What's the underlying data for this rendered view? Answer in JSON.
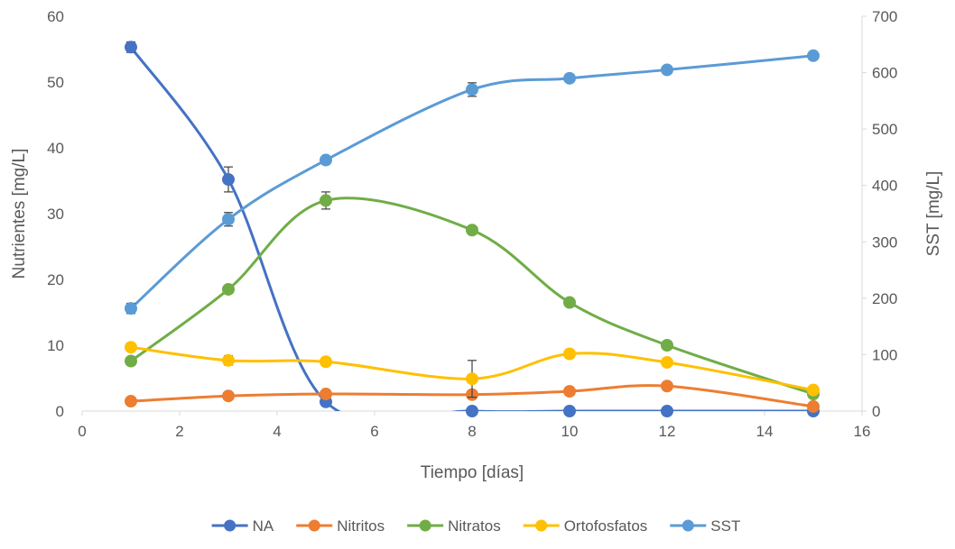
{
  "chart_data": {
    "type": "line",
    "x": [
      1,
      3,
      5,
      8,
      10,
      12,
      15
    ],
    "xlabel": "Tiempo [días]",
    "ylabel_left": "Nutrientes [mg/L]",
    "ylabel_right": "SST [mg/L]",
    "xlim": [
      0,
      16
    ],
    "ylim_left": [
      0,
      60
    ],
    "ylim_right": [
      0,
      700
    ],
    "x_ticks": [
      "0",
      "2",
      "4",
      "6",
      "8",
      "10",
      "12",
      "14",
      "16"
    ],
    "y_ticks_left": [
      "0",
      "10",
      "20",
      "30",
      "40",
      "50",
      "60"
    ],
    "y_ticks_right": [
      "0",
      "100",
      "200",
      "300",
      "400",
      "500",
      "600",
      "700"
    ],
    "grid": false,
    "smoothed": true,
    "legend_position": "bottom",
    "series": [
      {
        "name": "NA",
        "axis": "left",
        "color": "#4472C4",
        "values": [
          55.3,
          35.2,
          1.4,
          0,
          0,
          0,
          0
        ],
        "error": [
          0.8,
          1.9,
          0,
          0,
          0,
          0,
          0
        ]
      },
      {
        "name": "Nitritos",
        "axis": "left",
        "color": "#ED7D31",
        "values": [
          1.5,
          2.3,
          2.6,
          2.5,
          3.0,
          3.8,
          0.7
        ],
        "error": [
          0,
          0,
          0,
          0,
          0,
          0,
          0
        ]
      },
      {
        "name": "Nitratos",
        "axis": "left",
        "color": "#70AD47",
        "values": [
          7.6,
          18.5,
          32.0,
          27.5,
          16.5,
          10.0,
          2.6
        ],
        "error": [
          0,
          0,
          1.3,
          0,
          0,
          0,
          0
        ]
      },
      {
        "name": "Ortofosfatos",
        "axis": "left",
        "color": "#FFC000",
        "values": [
          9.7,
          7.7,
          7.5,
          4.9,
          8.7,
          7.4,
          3.2
        ],
        "error": [
          0,
          0.7,
          0,
          2.8,
          0,
          0,
          0
        ]
      },
      {
        "name": "SST",
        "axis": "right",
        "color": "#5B9BD5",
        "values": [
          182,
          340,
          445,
          570,
          590,
          605,
          630
        ],
        "error": [
          9,
          12,
          0,
          12,
          0,
          0,
          0
        ]
      }
    ]
  }
}
